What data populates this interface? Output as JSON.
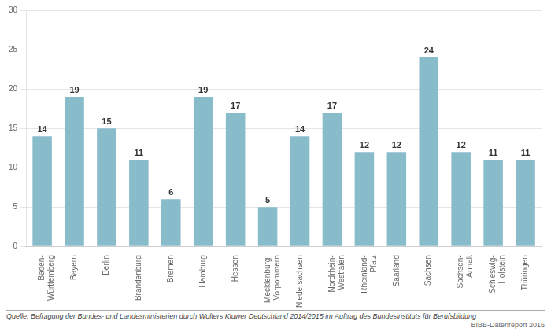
{
  "chart_data": {
    "type": "bar",
    "categories": [
      "Baden-\nWürttemberg",
      "Bayern",
      "Berlin",
      "Brandenburg",
      "Bremen",
      "Hamburg",
      "Hessen",
      "Mecklenburg-\nVorpommern",
      "Niedersachsen",
      "Nordrhein-\nWestfalen",
      "Rheinland-\nPfalz",
      "Saarland",
      "Sachsen",
      "Sachsen-\nAnhalt",
      "Schleswig-\nHolstein",
      "Thüringen"
    ],
    "values": [
      14,
      19,
      15,
      11,
      6,
      19,
      17,
      5,
      14,
      17,
      12,
      12,
      24,
      12,
      11,
      11
    ],
    "color": "#88bccb",
    "ylim": [
      0,
      30
    ],
    "yticks": [
      0,
      5,
      10,
      15,
      20,
      25,
      30
    ],
    "grid": true,
    "data_labels": true,
    "annotations": [
      "Quelle: Befragung der Bundes- und Landesministerien durch Wolters Kluwer Deutschland 2014/2015 im Auftrag des Bundesinstituts für Berufsbildung",
      "BIBB-Datenreport 2016"
    ]
  }
}
